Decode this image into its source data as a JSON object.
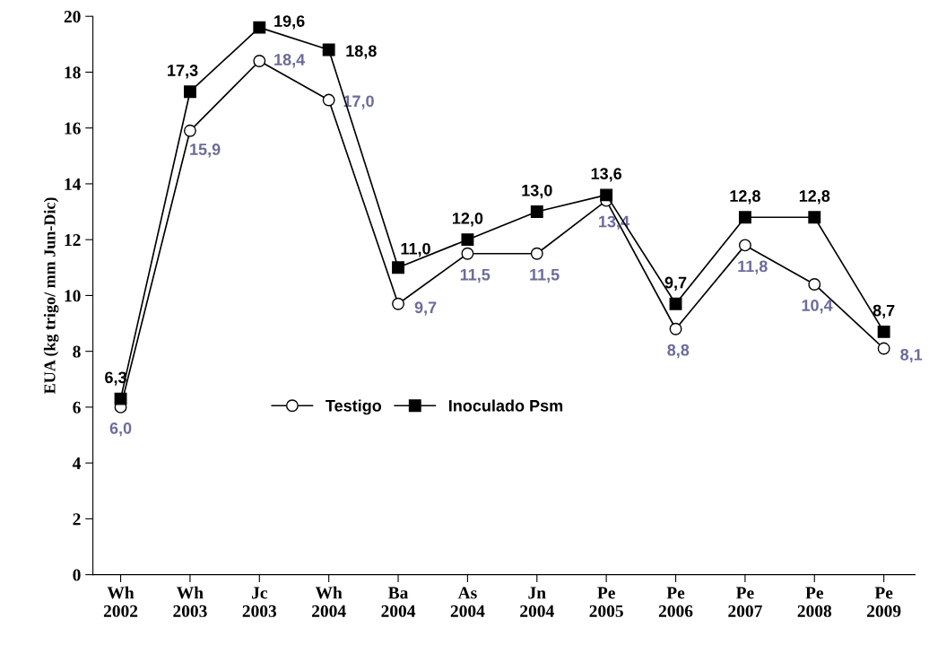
{
  "chart_data": {
    "type": "line",
    "ylabel": "EUA (kg trigo/ mm Jun-Dic)",
    "categories": [
      "Wh\n2002",
      "Wh\n2003",
      "Jc\n2003",
      "Wh\n2004",
      "Ba\n2004",
      "As\n2004",
      "Jn\n2004",
      "Pe\n2005",
      "Pe\n2006",
      "Pe\n2007",
      "Pe\n2008",
      "Pe\n2009"
    ],
    "series": [
      {
        "name": "Testigo",
        "color": "#000000",
        "marker": "circle",
        "values": [
          6.0,
          15.9,
          18.4,
          17.0,
          9.7,
          11.5,
          11.5,
          13.4,
          8.8,
          11.8,
          10.4,
          8.1
        ],
        "value_labels": [
          "6,0",
          "15,9",
          "18,4",
          "17,0",
          "9,7",
          "11,5",
          "11,5",
          "13,4",
          "8,8",
          "11,8",
          "10,4",
          "8,1"
        ]
      },
      {
        "name": "Inoculado Psm",
        "color": "#000000",
        "marker": "square",
        "values": [
          6.3,
          17.3,
          19.6,
          18.8,
          11.0,
          12.0,
          13.0,
          13.6,
          9.7,
          12.8,
          12.8,
          8.7
        ],
        "value_labels": [
          "6,3",
          "17,3",
          "19,6",
          "18,8",
          "11,0",
          "12,0",
          "13,0",
          "13,6",
          "9,7",
          "12,8",
          "12,8",
          "8,7"
        ]
      }
    ],
    "ylim": [
      0,
      20
    ],
    "yticks": [
      0,
      2,
      4,
      6,
      8,
      10,
      12,
      14,
      16,
      18,
      20
    ],
    "grid": false,
    "legend": "center",
    "line_style": "solid"
  }
}
